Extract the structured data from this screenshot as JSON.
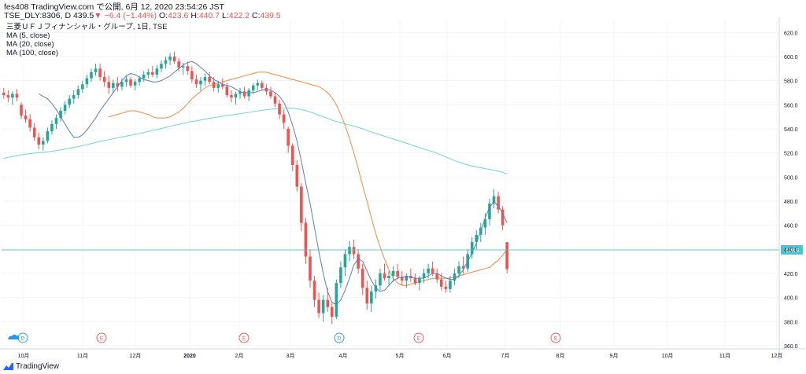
{
  "header": {
    "title": "fes408 TradingView.com で公開, 6月 12, 2020 23:54:26 JST",
    "symbol": "TSE_DLY:8306, D",
    "last": "439.5",
    "arrow": "▼",
    "change": "−6.4 (−1.44%)",
    "open_label": "O:",
    "open": "423.6",
    "high_label": "H:",
    "high": "440.7",
    "low_label": "L:",
    "low": "422.2",
    "close_label": "C:",
    "close": "439.5"
  },
  "legend": {
    "instrument": "三菱ＵＦＪフィナンシャル・グループ, 1日, TSE",
    "ma5": "MA (5, close)",
    "ma20": "MA (20, close)",
    "ma100": "MA (100, close)"
  },
  "footer": {
    "brand": "TradingView"
  },
  "colors": {
    "up": "#26a69a",
    "down": "#ef5350",
    "ma5": "#5b7fb8",
    "ma20": "#f7873a",
    "ma100": "#71d3e0",
    "price_line": "#4dc3d4",
    "grid": "#f0f3fa",
    "event_d": "#2196f3",
    "event_e": "#ef5350"
  },
  "chart_data": {
    "type": "candlestick",
    "y_ticks": [
      "360.0",
      "380.0",
      "400.0",
      "420.0",
      "440.0",
      "460.0",
      "480.0",
      "500.0",
      "520.0",
      "540.0",
      "560.0",
      "580.0",
      "600.0",
      "620.0"
    ],
    "ylim": [
      358,
      630
    ],
    "x_ticks": [
      "10月",
      "11月",
      "12月",
      "2020",
      "2月",
      "3月",
      "4月",
      "5月",
      "6月",
      "7月",
      "8月",
      "9月",
      "10月",
      "11月",
      "12月"
    ],
    "last_price_label": "439.5",
    "last_price": 439.5,
    "events": [
      "D",
      "E",
      "E",
      "D",
      "E",
      "E"
    ],
    "candles": [
      [
        570,
        574,
        565,
        568
      ],
      [
        568,
        572,
        562,
        566
      ],
      [
        566,
        571,
        560,
        569
      ],
      [
        569,
        573,
        563,
        566
      ],
      [
        560,
        562,
        548,
        551
      ],
      [
        551,
        556,
        545,
        548
      ],
      [
        548,
        552,
        538,
        541
      ],
      [
        541,
        545,
        530,
        533
      ],
      [
        533,
        537,
        523,
        527
      ],
      [
        527,
        533,
        522,
        530
      ],
      [
        530,
        541,
        528,
        538
      ],
      [
        538,
        547,
        535,
        544
      ],
      [
        544,
        552,
        540,
        549
      ],
      [
        549,
        558,
        546,
        555
      ],
      [
        555,
        563,
        552,
        560
      ],
      [
        560,
        568,
        557,
        565
      ],
      [
        565,
        572,
        561,
        568
      ],
      [
        568,
        576,
        565,
        573
      ],
      [
        573,
        580,
        570,
        577
      ],
      [
        577,
        585,
        574,
        582
      ],
      [
        582,
        590,
        579,
        587
      ],
      [
        587,
        594,
        584,
        590
      ],
      [
        590,
        594,
        580,
        583
      ],
      [
        583,
        588,
        575,
        579
      ],
      [
        579,
        584,
        569,
        574
      ],
      [
        574,
        581,
        570,
        578
      ],
      [
        578,
        583,
        571,
        575
      ],
      [
        575,
        582,
        572,
        579
      ],
      [
        579,
        584,
        575,
        581
      ],
      [
        581,
        583,
        574,
        576
      ],
      [
        576,
        581,
        572,
        579
      ],
      [
        579,
        584,
        576,
        582
      ],
      [
        582,
        588,
        579,
        585
      ],
      [
        585,
        590,
        582,
        587
      ],
      [
        587,
        592,
        583,
        585
      ],
      [
        585,
        593,
        582,
        590
      ],
      [
        590,
        597,
        587,
        594
      ],
      [
        594,
        600,
        590,
        597
      ],
      [
        597,
        603,
        593,
        600
      ],
      [
        600,
        604,
        594,
        596
      ],
      [
        596,
        599,
        588,
        591
      ],
      [
        591,
        595,
        585,
        592
      ],
      [
        592,
        596,
        585,
        588
      ],
      [
        588,
        592,
        578,
        581
      ],
      [
        581,
        585,
        574,
        577
      ],
      [
        577,
        583,
        572,
        580
      ],
      [
        580,
        586,
        576,
        583
      ],
      [
        583,
        587,
        577,
        579
      ],
      [
        579,
        583,
        571,
        574
      ],
      [
        574,
        580,
        570,
        577
      ],
      [
        577,
        582,
        573,
        575
      ],
      [
        575,
        578,
        566,
        568
      ],
      [
        568,
        572,
        562,
        566
      ],
      [
        566,
        571,
        560,
        569
      ],
      [
        569,
        574,
        565,
        571
      ],
      [
        571,
        575,
        565,
        567
      ],
      [
        567,
        574,
        563,
        572
      ],
      [
        572,
        578,
        569,
        576
      ],
      [
        576,
        581,
        572,
        578
      ],
      [
        578,
        580,
        572,
        574
      ],
      [
        574,
        577,
        568,
        571
      ],
      [
        571,
        575,
        565,
        567
      ],
      [
        567,
        570,
        558,
        561
      ],
      [
        561,
        564,
        548,
        552
      ],
      [
        552,
        556,
        540,
        545
      ],
      [
        540,
        542,
        520,
        526
      ],
      [
        526,
        528,
        505,
        510
      ],
      [
        510,
        514,
        488,
        492
      ],
      [
        492,
        495,
        455,
        462
      ],
      [
        462,
        466,
        428,
        434
      ],
      [
        434,
        440,
        408,
        414
      ],
      [
        414,
        418,
        392,
        398
      ],
      [
        398,
        404,
        383,
        387
      ],
      [
        387,
        402,
        380,
        398
      ],
      [
        398,
        408,
        388,
        392
      ],
      [
        392,
        396,
        378,
        384
      ],
      [
        384,
        415,
        382,
        412
      ],
      [
        412,
        430,
        408,
        425
      ],
      [
        425,
        440,
        418,
        436
      ],
      [
        436,
        447,
        430,
        442
      ],
      [
        442,
        448,
        432,
        436
      ],
      [
        436,
        440,
        420,
        424
      ],
      [
        424,
        428,
        402,
        408
      ],
      [
        408,
        414,
        390,
        395
      ],
      [
        395,
        410,
        388,
        405
      ],
      [
        405,
        415,
        399,
        410
      ],
      [
        410,
        424,
        406,
        420
      ],
      [
        420,
        428,
        414,
        416
      ],
      [
        416,
        422,
        410,
        418
      ],
      [
        418,
        426,
        413,
        422
      ],
      [
        422,
        428,
        415,
        417
      ],
      [
        417,
        422,
        410,
        414
      ],
      [
        414,
        420,
        408,
        418
      ],
      [
        418,
        424,
        413,
        416
      ],
      [
        416,
        420,
        410,
        412
      ],
      [
        412,
        418,
        406,
        416
      ],
      [
        416,
        424,
        412,
        420
      ],
      [
        420,
        428,
        416,
        424
      ],
      [
        424,
        430,
        418,
        420
      ],
      [
        420,
        424,
        412,
        415
      ],
      [
        415,
        420,
        406,
        409
      ],
      [
        409,
        414,
        404,
        407
      ],
      [
        407,
        418,
        404,
        414
      ],
      [
        414,
        424,
        410,
        420
      ],
      [
        420,
        430,
        416,
        426
      ],
      [
        426,
        434,
        420,
        424
      ],
      [
        424,
        440,
        421,
        436
      ],
      [
        436,
        450,
        432,
        446
      ],
      [
        446,
        456,
        440,
        452
      ],
      [
        452,
        462,
        446,
        458
      ],
      [
        458,
        470,
        452,
        465
      ],
      [
        465,
        482,
        460,
        478
      ],
      [
        478,
        490,
        474,
        484
      ],
      [
        484,
        488,
        470,
        473
      ],
      [
        473,
        476,
        456,
        460
      ],
      [
        445.9,
        446,
        420,
        423.6
      ]
    ],
    "ma5_series": [
      569,
      567,
      565,
      561,
      556,
      550,
      544,
      538,
      533,
      533,
      535,
      539,
      544,
      549,
      555,
      560,
      565,
      570,
      575,
      580,
      584,
      586,
      585,
      583,
      581,
      580,
      579,
      579,
      580,
      582,
      584,
      587,
      590,
      593,
      595,
      596,
      594,
      591,
      588,
      584,
      581,
      579,
      577,
      576,
      575,
      573,
      571,
      570,
      570,
      570,
      571,
      572,
      573,
      572,
      570,
      567,
      562,
      554,
      543,
      530,
      513,
      495,
      478,
      458,
      438,
      420,
      405,
      396,
      394,
      398,
      406,
      416,
      427,
      432,
      430,
      422,
      414,
      408,
      405,
      406,
      410,
      414,
      416,
      417,
      417,
      417,
      416,
      416,
      416,
      418,
      420,
      420,
      418,
      416,
      415,
      415,
      418,
      423,
      430,
      437,
      445,
      455,
      466,
      475,
      479,
      476,
      470,
      462
    ],
    "ma20_series": [
      550,
      551,
      552,
      553,
      554,
      555,
      555,
      554,
      553,
      552,
      550,
      549,
      549,
      549,
      550,
      552,
      554,
      557,
      561,
      565,
      568,
      571,
      574,
      576,
      577,
      578,
      579,
      580,
      581,
      582,
      583,
      584,
      585,
      586,
      587,
      587,
      587,
      586,
      585,
      584,
      583,
      582,
      581,
      580,
      579,
      578,
      577,
      576,
      575,
      573,
      570,
      566,
      560,
      552,
      543,
      532,
      520,
      507,
      493,
      480,
      466,
      453,
      442,
      432,
      423,
      416,
      412,
      410,
      410,
      411,
      412,
      413,
      414,
      415,
      416,
      416,
      416,
      416,
      416,
      417,
      418,
      419,
      420,
      421,
      422,
      423,
      424,
      425,
      428,
      431,
      435,
      440
    ]
  }
}
